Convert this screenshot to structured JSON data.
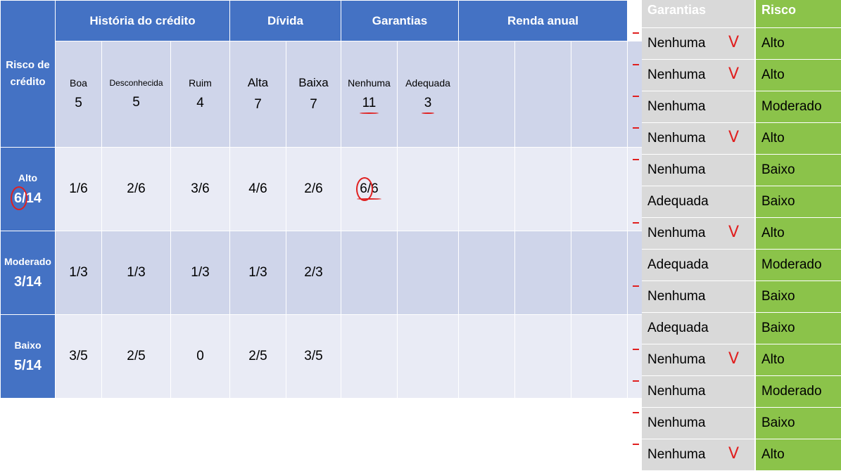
{
  "headers": {
    "row_label": "Risco de crédito",
    "historia": "História do crédito",
    "divida": "Dívida",
    "garantias": "Garantias",
    "renda": "Renda anual"
  },
  "categories": [
    {
      "name": "Boa",
      "count": "5"
    },
    {
      "name": "Desconhecida",
      "count": "5"
    },
    {
      "name": "Ruim",
      "count": "4"
    },
    {
      "name": "Alta",
      "count": "7"
    },
    {
      "name": "Baixa",
      "count": "7"
    },
    {
      "name": "Nenhuma",
      "count": "11"
    },
    {
      "name": "Adequada",
      "count": "3"
    }
  ],
  "classes": [
    {
      "name": "Alto",
      "frac": "6/14",
      "values": [
        "1/6",
        "2/6",
        "3/6",
        "4/6",
        "2/6",
        "6/6",
        ""
      ]
    },
    {
      "name": "Moderado",
      "frac": "3/14",
      "values": [
        "1/3",
        "1/3",
        "1/3",
        "1/3",
        "2/3",
        "",
        ""
      ]
    },
    {
      "name": "Baixo",
      "frac": "5/14",
      "values": [
        "3/5",
        "2/5",
        "0",
        "2/5",
        "3/5",
        "",
        ""
      ]
    }
  ],
  "side_table": {
    "col1": "Garantias",
    "col2": "Risco",
    "rows": [
      {
        "garantia": "Nenhuma",
        "risco": "Alto",
        "tick": "V",
        "dash": true
      },
      {
        "garantia": "Nenhuma",
        "risco": "Alto",
        "tick": "V",
        "dash": true
      },
      {
        "garantia": "Nenhuma",
        "risco": "Moderado",
        "tick": "",
        "dash": true
      },
      {
        "garantia": "Nenhuma",
        "risco": "Alto",
        "tick": "V",
        "dash": true
      },
      {
        "garantia": "Nenhuma",
        "risco": "Baixo",
        "tick": "",
        "dash": true
      },
      {
        "garantia": "Adequada",
        "risco": "Baixo",
        "tick": "",
        "dash": false
      },
      {
        "garantia": "Nenhuma",
        "risco": "Alto",
        "tick": "V",
        "dash": true
      },
      {
        "garantia": "Adequada",
        "risco": "Moderado",
        "tick": "",
        "dash": false
      },
      {
        "garantia": "Nenhuma",
        "risco": "Baixo",
        "tick": "",
        "dash": true
      },
      {
        "garantia": "Adequada",
        "risco": "Baixo",
        "tick": "",
        "dash": false
      },
      {
        "garantia": "Nenhuma",
        "risco": "Alto",
        "tick": "V",
        "dash": true
      },
      {
        "garantia": "Nenhuma",
        "risco": "Moderado",
        "tick": "",
        "dash": true
      },
      {
        "garantia": "Nenhuma",
        "risco": "Baixo",
        "tick": "",
        "dash": true
      },
      {
        "garantia": "Nenhuma",
        "risco": "Alto",
        "tick": "V",
        "dash": true
      }
    ]
  }
}
